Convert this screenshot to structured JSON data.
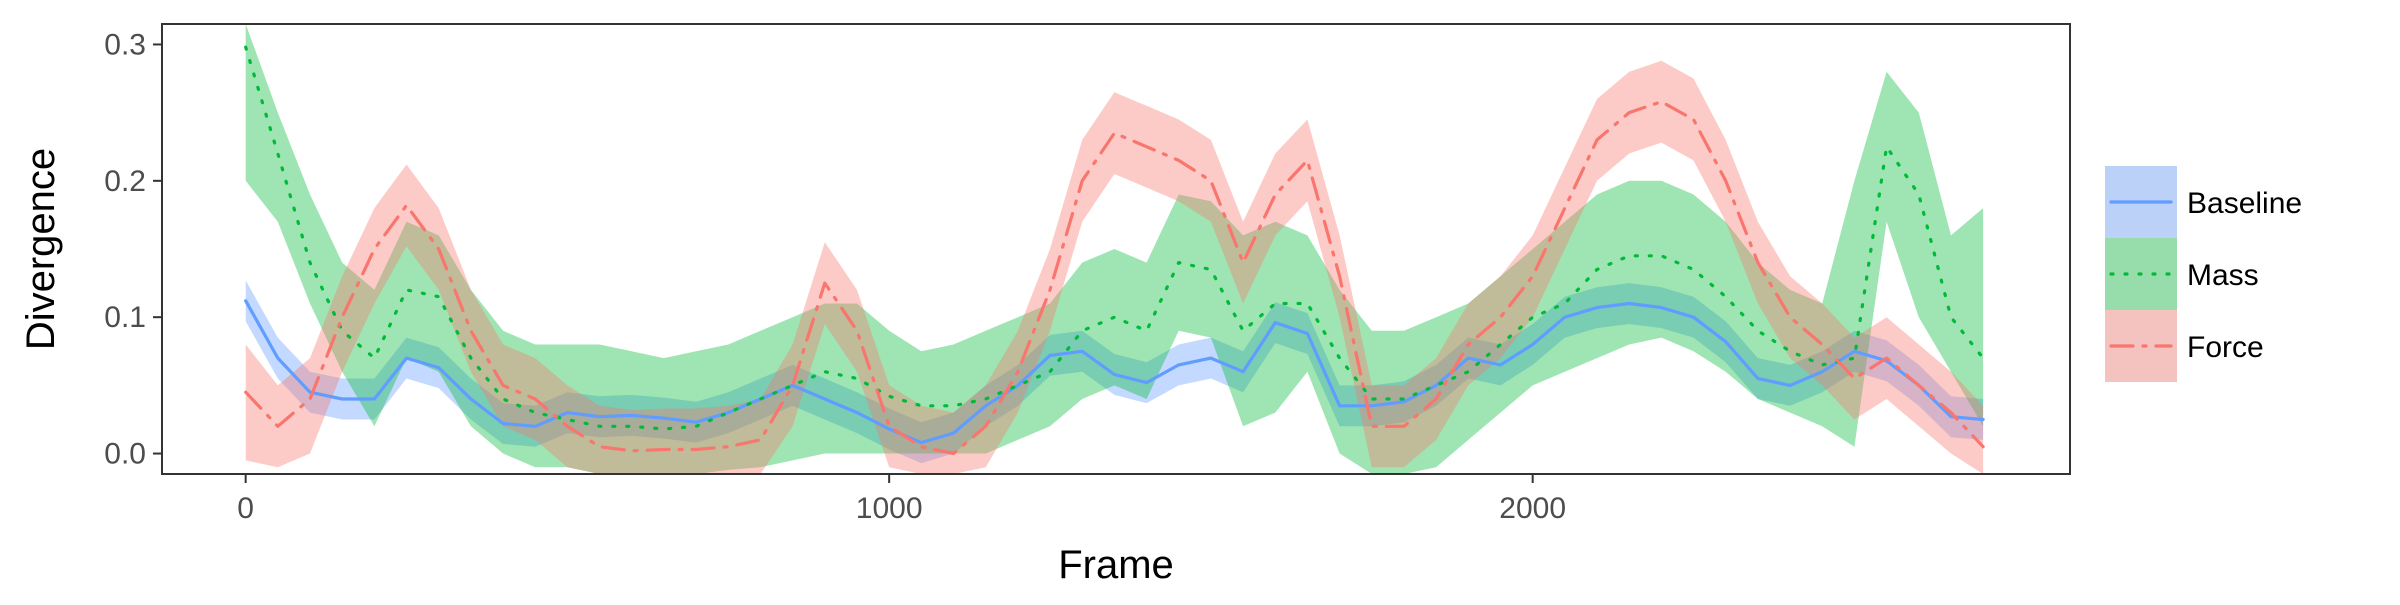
{
  "chart_data": {
    "type": "line",
    "title": "",
    "xlabel": "Frame",
    "ylabel": "Divergence",
    "xlim": [
      -130,
      2835
    ],
    "ylim": [
      -0.015,
      0.315
    ],
    "x_ticks": [
      0,
      1000,
      2000
    ],
    "x_tick_labels": [
      "0",
      "1000",
      "2000"
    ],
    "y_ticks": [
      0.0,
      0.1,
      0.2,
      0.3
    ],
    "y_tick_labels": [
      "0.0",
      "0.1",
      "0.2",
      "0.3"
    ],
    "grid": false,
    "legend_position": "right",
    "x": [
      0,
      50,
      100,
      150,
      200,
      250,
      300,
      350,
      400,
      450,
      500,
      550,
      600,
      650,
      700,
      750,
      800,
      850,
      900,
      950,
      1000,
      1050,
      1100,
      1150,
      1200,
      1250,
      1300,
      1350,
      1400,
      1450,
      1500,
      1550,
      1600,
      1650,
      1700,
      1750,
      1800,
      1850,
      1900,
      1950,
      2000,
      2050,
      2100,
      2150,
      2200,
      2250,
      2300,
      2350,
      2400,
      2450,
      2500,
      2550,
      2600,
      2650,
      2700
    ],
    "series": [
      {
        "name": "Baseline",
        "color": "#619CFF",
        "line_style": "solid",
        "values": [
          0.112,
          0.07,
          0.045,
          0.04,
          0.04,
          0.07,
          0.063,
          0.04,
          0.022,
          0.02,
          0.03,
          0.027,
          0.028,
          0.026,
          0.023,
          0.03,
          0.04,
          0.05,
          0.04,
          0.03,
          0.018,
          0.008,
          0.015,
          0.035,
          0.05,
          0.072,
          0.075,
          0.058,
          0.052,
          0.065,
          0.07,
          0.06,
          0.096,
          0.088,
          0.035,
          0.035,
          0.038,
          0.05,
          0.07,
          0.065,
          0.08,
          0.1,
          0.107,
          0.11,
          0.107,
          0.1,
          0.082,
          0.055,
          0.05,
          0.06,
          0.075,
          0.068,
          0.05,
          0.027,
          0.025
        ],
        "lower": [
          0.097,
          0.055,
          0.03,
          0.025,
          0.025,
          0.055,
          0.048,
          0.025,
          0.007,
          0.005,
          0.015,
          0.012,
          0.013,
          0.011,
          0.008,
          0.015,
          0.025,
          0.035,
          0.025,
          0.015,
          0.003,
          -0.007,
          0.0,
          0.02,
          0.035,
          0.057,
          0.06,
          0.043,
          0.037,
          0.05,
          0.055,
          0.045,
          0.081,
          0.073,
          0.02,
          0.02,
          0.023,
          0.035,
          0.055,
          0.05,
          0.065,
          0.085,
          0.092,
          0.095,
          0.092,
          0.085,
          0.067,
          0.04,
          0.035,
          0.045,
          0.06,
          0.053,
          0.035,
          0.012,
          0.01
        ],
        "upper": [
          0.127,
          0.085,
          0.06,
          0.055,
          0.055,
          0.085,
          0.078,
          0.055,
          0.037,
          0.035,
          0.045,
          0.042,
          0.043,
          0.041,
          0.038,
          0.045,
          0.055,
          0.065,
          0.055,
          0.045,
          0.033,
          0.023,
          0.03,
          0.05,
          0.065,
          0.087,
          0.09,
          0.073,
          0.067,
          0.08,
          0.085,
          0.075,
          0.111,
          0.103,
          0.05,
          0.05,
          0.053,
          0.065,
          0.085,
          0.08,
          0.095,
          0.115,
          0.122,
          0.125,
          0.122,
          0.115,
          0.097,
          0.07,
          0.065,
          0.075,
          0.09,
          0.083,
          0.065,
          0.042,
          0.04
        ]
      },
      {
        "name": "Mass",
        "color": "#00BA38",
        "line_style": "dotted",
        "values": [
          0.298,
          0.22,
          0.14,
          0.09,
          0.07,
          0.12,
          0.115,
          0.07,
          0.04,
          0.03,
          0.025,
          0.02,
          0.02,
          0.018,
          0.02,
          0.03,
          0.04,
          0.05,
          0.06,
          0.055,
          0.042,
          0.035,
          0.035,
          0.04,
          0.05,
          0.06,
          0.09,
          0.1,
          0.09,
          0.14,
          0.135,
          0.09,
          0.11,
          0.11,
          0.07,
          0.04,
          0.04,
          0.05,
          0.06,
          0.08,
          0.1,
          0.11,
          0.135,
          0.145,
          0.145,
          0.135,
          0.115,
          0.09,
          0.075,
          0.065,
          0.07,
          0.225,
          0.19,
          0.1,
          0.07
        ],
        "lower": [
          0.2,
          0.17,
          0.11,
          0.06,
          0.02,
          0.07,
          0.06,
          0.02,
          0.0,
          -0.01,
          -0.01,
          -0.015,
          -0.015,
          -0.015,
          -0.015,
          -0.012,
          -0.01,
          -0.005,
          0.0,
          0.0,
          0.0,
          0.0,
          0.0,
          0.0,
          0.01,
          0.02,
          0.04,
          0.05,
          0.04,
          0.09,
          0.085,
          0.02,
          0.03,
          0.06,
          0.0,
          -0.015,
          -0.015,
          -0.01,
          0.01,
          0.03,
          0.05,
          0.06,
          0.07,
          0.08,
          0.085,
          0.075,
          0.06,
          0.04,
          0.03,
          0.02,
          0.005,
          0.17,
          0.1,
          0.06,
          0.02
        ],
        "upper": [
          0.315,
          0.25,
          0.19,
          0.14,
          0.12,
          0.17,
          0.16,
          0.12,
          0.09,
          0.08,
          0.08,
          0.08,
          0.075,
          0.07,
          0.075,
          0.08,
          0.09,
          0.1,
          0.11,
          0.11,
          0.09,
          0.075,
          0.08,
          0.09,
          0.1,
          0.11,
          0.14,
          0.15,
          0.14,
          0.19,
          0.185,
          0.16,
          0.17,
          0.16,
          0.12,
          0.09,
          0.09,
          0.1,
          0.11,
          0.13,
          0.15,
          0.17,
          0.19,
          0.2,
          0.2,
          0.19,
          0.17,
          0.14,
          0.12,
          0.11,
          0.2,
          0.28,
          0.25,
          0.16,
          0.18
        ]
      },
      {
        "name": "Force",
        "color": "#F8766D",
        "line_style": "dashdot",
        "values": [
          0.045,
          0.02,
          0.04,
          0.1,
          0.15,
          0.182,
          0.15,
          0.09,
          0.05,
          0.04,
          0.02,
          0.005,
          0.002,
          0.003,
          0.003,
          0.005,
          0.01,
          0.05,
          0.125,
          0.09,
          0.02,
          0.005,
          0.0,
          0.02,
          0.06,
          0.12,
          0.2,
          0.235,
          0.225,
          0.215,
          0.2,
          0.14,
          0.19,
          0.215,
          0.13,
          0.02,
          0.02,
          0.04,
          0.08,
          0.1,
          0.13,
          0.18,
          0.23,
          0.25,
          0.258,
          0.245,
          0.2,
          0.14,
          0.1,
          0.08,
          0.055,
          0.07,
          0.05,
          0.03,
          0.005
        ],
        "lower": [
          -0.005,
          -0.01,
          0.0,
          0.06,
          0.11,
          0.152,
          0.12,
          0.06,
          0.02,
          0.01,
          -0.01,
          -0.015,
          -0.015,
          -0.015,
          -0.015,
          -0.015,
          -0.015,
          0.02,
          0.095,
          0.06,
          -0.01,
          -0.015,
          -0.015,
          -0.01,
          0.03,
          0.09,
          0.17,
          0.205,
          0.195,
          0.185,
          0.17,
          0.11,
          0.16,
          0.185,
          0.1,
          -0.01,
          -0.01,
          0.01,
          0.05,
          0.07,
          0.1,
          0.15,
          0.2,
          0.22,
          0.228,
          0.215,
          0.17,
          0.11,
          0.07,
          0.05,
          0.025,
          0.04,
          0.02,
          0.0,
          -0.015
        ],
        "upper": [
          0.08,
          0.05,
          0.07,
          0.13,
          0.18,
          0.212,
          0.18,
          0.12,
          0.08,
          0.07,
          0.05,
          0.035,
          0.032,
          0.033,
          0.033,
          0.035,
          0.04,
          0.08,
          0.155,
          0.12,
          0.05,
          0.035,
          0.03,
          0.05,
          0.09,
          0.15,
          0.23,
          0.265,
          0.255,
          0.245,
          0.23,
          0.17,
          0.22,
          0.245,
          0.16,
          0.05,
          0.05,
          0.07,
          0.11,
          0.13,
          0.16,
          0.21,
          0.26,
          0.28,
          0.288,
          0.275,
          0.23,
          0.17,
          0.13,
          0.11,
          0.085,
          0.1,
          0.08,
          0.06,
          0.035
        ]
      }
    ]
  }
}
